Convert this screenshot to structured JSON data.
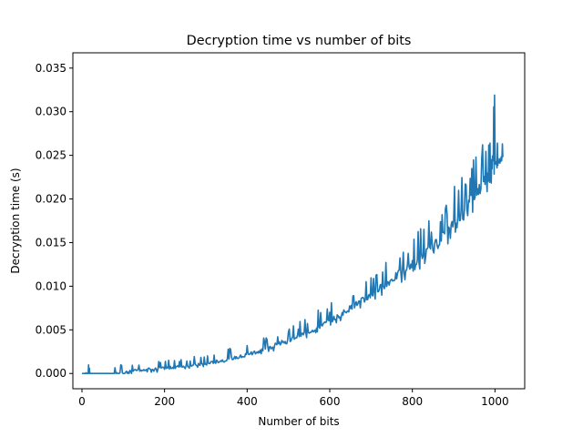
{
  "chart_data": {
    "type": "line",
    "title": "Decryption time vs number of bits",
    "xlabel": "Number of bits",
    "ylabel": "Decryption time (s)",
    "xlim": [
      -22,
      1072
    ],
    "ylim": [
      -0.00175,
      0.03675
    ],
    "xticks": [
      0,
      200,
      400,
      600,
      800,
      1000
    ],
    "xtick_labels": [
      "0",
      "200",
      "400",
      "600",
      "800",
      "1000"
    ],
    "yticks": [
      0.0,
      0.005,
      0.01,
      0.015,
      0.02,
      0.025,
      0.03,
      0.035
    ],
    "ytick_labels": [
      "0.000",
      "0.005",
      "0.010",
      "0.015",
      "0.020",
      "0.025",
      "0.030",
      "0.035"
    ],
    "grid": false,
    "legend": "none",
    "series_color": "#1f77b4",
    "series": [
      {
        "x": [
          0,
          10,
          20,
          40,
          60,
          80,
          100,
          120,
          140,
          160,
          180,
          200,
          220,
          240,
          260,
          280,
          300,
          320,
          340,
          360,
          380,
          400,
          420,
          440,
          460,
          480,
          500,
          520,
          540,
          560,
          580,
          600,
          620,
          640,
          660,
          680,
          700,
          720,
          740,
          760,
          780,
          800,
          820,
          840,
          860,
          880,
          900,
          920,
          940,
          960,
          980,
          990,
          1000,
          1010,
          1020
        ],
        "y": [
          0.0,
          0.0,
          0.0,
          0.0,
          0.0,
          0.0,
          0.0,
          0.0003,
          0.0004,
          0.0005,
          0.0005,
          0.0006,
          0.0007,
          0.0008,
          0.0009,
          0.001,
          0.0011,
          0.0013,
          0.0015,
          0.0017,
          0.0019,
          0.0022,
          0.0025,
          0.0028,
          0.0031,
          0.0035,
          0.0038,
          0.0042,
          0.0046,
          0.005,
          0.0055,
          0.006,
          0.0066,
          0.0072,
          0.0078,
          0.0084,
          0.009,
          0.0097,
          0.0104,
          0.0111,
          0.0118,
          0.0125,
          0.0133,
          0.0141,
          0.015,
          0.016,
          0.0172,
          0.0184,
          0.0197,
          0.0211,
          0.0225,
          0.0232,
          0.0239,
          0.0243,
          0.0248
        ],
        "y_spread": [
          0.0,
          0.001,
          0.0,
          0.0,
          0.0,
          0.001,
          0.001,
          0.001,
          0.001,
          0.001,
          0.001,
          0.001,
          0.001,
          0.001,
          0.001,
          0.001,
          0.001,
          0.0012,
          0.0012,
          0.0012,
          0.0012,
          0.0012,
          0.0014,
          0.0014,
          0.0015,
          0.0015,
          0.0015,
          0.0016,
          0.0018,
          0.002,
          0.0018,
          0.002,
          0.0022,
          0.0022,
          0.0024,
          0.0024,
          0.0026,
          0.0028,
          0.003,
          0.0032,
          0.0032,
          0.0034,
          0.0036,
          0.0036,
          0.0038,
          0.004,
          0.0042,
          0.0045,
          0.0048,
          0.005,
          0.0052,
          0.011,
          0.004,
          0.002,
          0.0015
        ]
      }
    ]
  }
}
